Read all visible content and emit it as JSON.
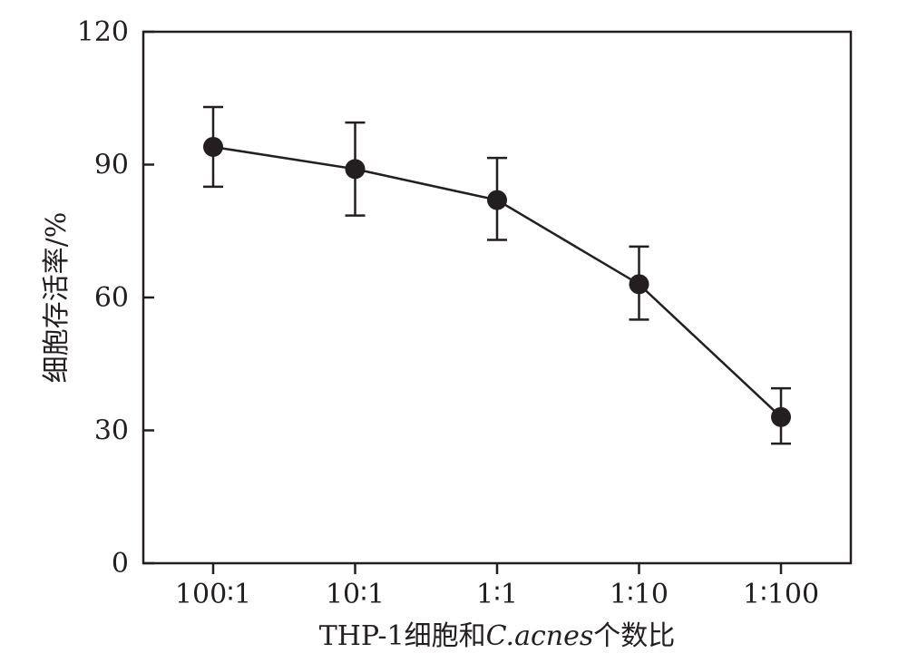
{
  "chart_data": {
    "type": "line",
    "title": "",
    "xlabel": "THP-1细胞和C.acnes个数比",
    "xlabel_parts": {
      "prefix": "THP-1细胞和",
      "italic": "C.acnes",
      "suffix": "个数比"
    },
    "ylabel": "细胞存活率/%",
    "categories": [
      "100∶1",
      "10∶1",
      "1∶1",
      "1∶10",
      "1∶100"
    ],
    "series": [
      {
        "values": [
          94,
          89,
          82,
          63,
          33
        ],
        "error_upper": [
          103,
          99.5,
          91.5,
          71.5,
          39.5
        ],
        "error_lower": [
          85,
          78.5,
          73,
          55,
          27
        ],
        "color": "#231f20"
      }
    ],
    "ylim": [
      0,
      120
    ],
    "yticks": [
      0,
      30,
      60,
      90,
      120
    ],
    "grid": false,
    "legend": "none"
  }
}
